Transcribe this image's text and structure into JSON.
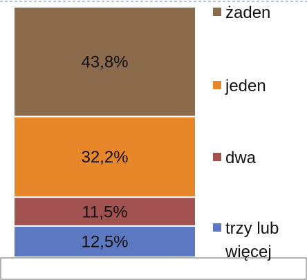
{
  "chart_data": {
    "type": "stacked-bar",
    "series": [
      {
        "name": "trzy lub więcej",
        "color": "#5b78c0",
        "values": [
          12.5
        ],
        "value_labels": [
          "12,5%"
        ]
      },
      {
        "name": "dwa",
        "color": "#a35252",
        "values": [
          11.5
        ],
        "value_labels": [
          "11,5%"
        ]
      },
      {
        "name": "jeden",
        "color": "#e8862a",
        "values": [
          32.2
        ],
        "value_labels": [
          "32,2%"
        ]
      },
      {
        "name": "żaden",
        "color": "#8c6b4c",
        "values": [
          43.8
        ],
        "value_labels": [
          "43,8%"
        ]
      }
    ]
  }
}
